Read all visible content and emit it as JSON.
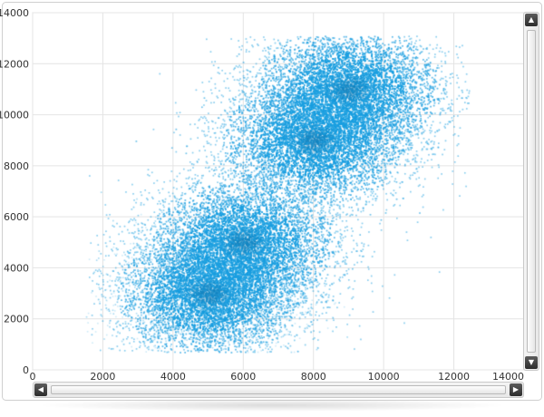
{
  "chart_data": {
    "type": "scatter",
    "title": "",
    "xlabel": "",
    "ylabel": "",
    "xlim": [
      0,
      14000
    ],
    "ylim": [
      0,
      14000
    ],
    "x_ticks": [
      0,
      2000,
      4000,
      6000,
      8000,
      10000,
      12000,
      14000
    ],
    "y_ticks": [
      0,
      2000,
      4000,
      6000,
      8000,
      10000,
      12000,
      14000
    ],
    "grid": true,
    "legend": "none",
    "point_color": "#1a9fe0",
    "series": [
      {
        "clusters": [
          {
            "center_x": 5000,
            "center_y": 3000
          },
          {
            "center_x": 6000,
            "center_y": 5000
          },
          {
            "center_x": 8000,
            "center_y": 9000
          },
          {
            "center_x": 9000,
            "center_y": 11000
          }
        ],
        "x_range": [
          1500,
          12500
        ],
        "y_range": [
          700,
          13100
        ]
      }
    ]
  },
  "scrollbars": {
    "vertical": {
      "up_icon": "▲",
      "down_icon": "▼"
    },
    "horizontal": {
      "left_icon": "◀",
      "right_icon": "▶"
    }
  },
  "colors": {
    "frame_border": "#cfcfcf",
    "grid": "#e4e4e4",
    "tick_text": "#333333"
  }
}
